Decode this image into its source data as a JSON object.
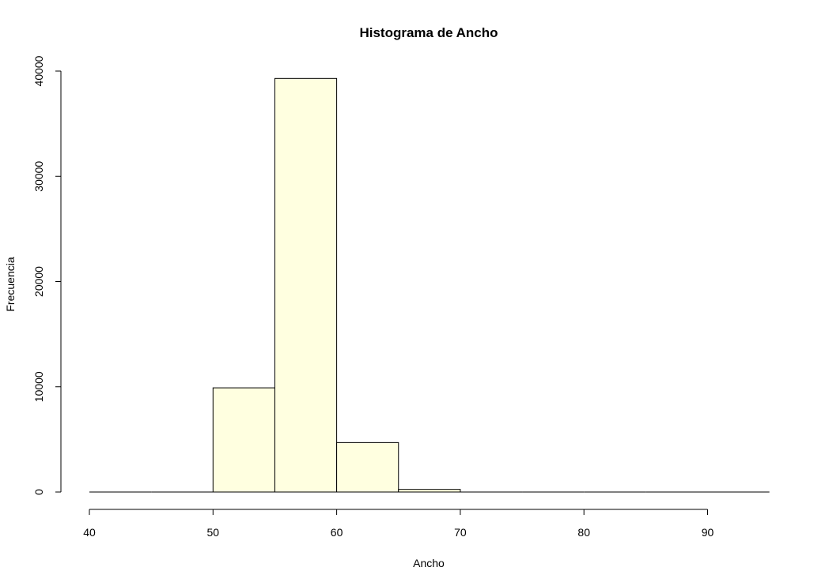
{
  "chart_data": {
    "type": "bar",
    "title": "Histograma de Ancho",
    "xlabel": "Ancho",
    "ylabel": "Frecuencia",
    "bins": [
      {
        "start": 40,
        "end": 45,
        "count": 0
      },
      {
        "start": 45,
        "end": 50,
        "count": 0
      },
      {
        "start": 50,
        "end": 55,
        "count": 9900
      },
      {
        "start": 55,
        "end": 60,
        "count": 39300
      },
      {
        "start": 60,
        "end": 65,
        "count": 4700
      },
      {
        "start": 65,
        "end": 70,
        "count": 250
      },
      {
        "start": 70,
        "end": 75,
        "count": 0
      },
      {
        "start": 75,
        "end": 80,
        "count": 0
      },
      {
        "start": 80,
        "end": 85,
        "count": 0
      },
      {
        "start": 85,
        "end": 90,
        "count": 0
      },
      {
        "start": 90,
        "end": 95,
        "count": 0
      }
    ],
    "xlim": [
      40,
      95
    ],
    "ylim": [
      0,
      40000
    ],
    "x_ticks": [
      "40",
      "50",
      "60",
      "70",
      "80",
      "90"
    ],
    "y_ticks": [
      "0",
      "10000",
      "20000",
      "30000",
      "40000"
    ],
    "bar_color": "#FFFFE0",
    "grid": false
  }
}
